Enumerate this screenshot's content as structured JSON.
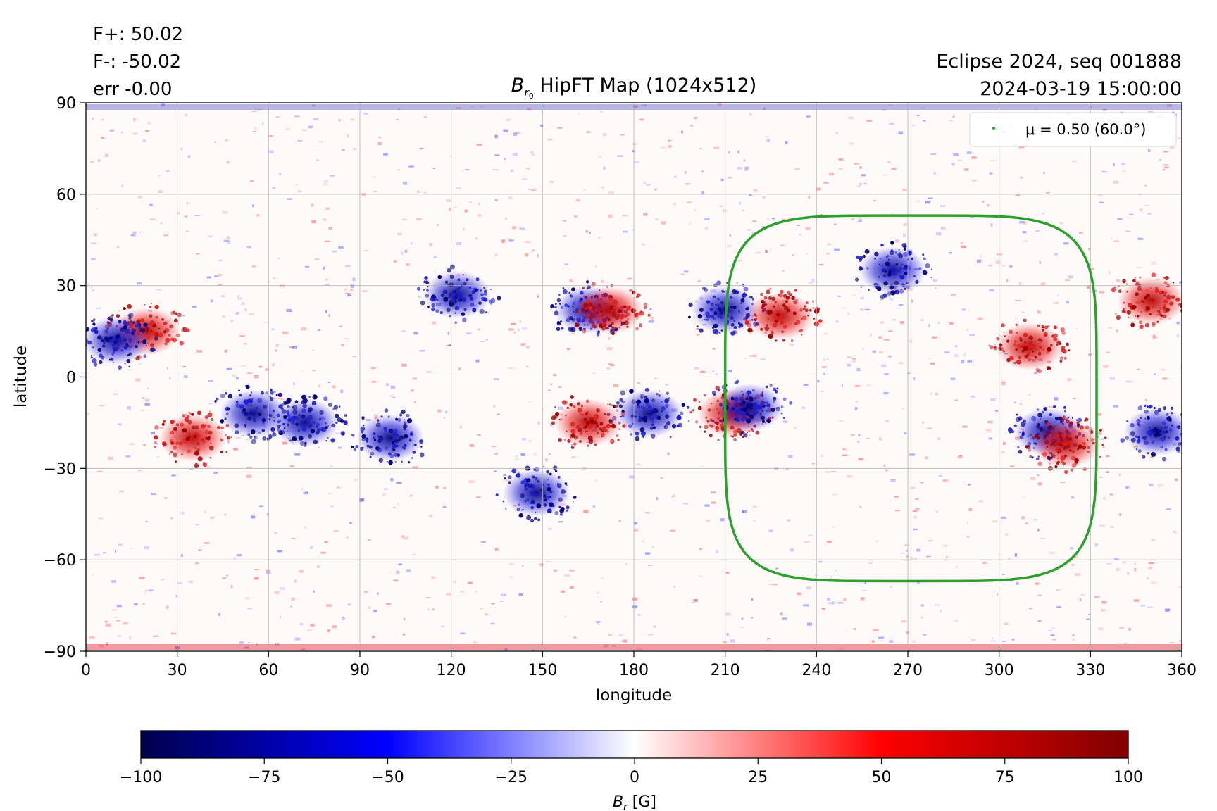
{
  "header": {
    "flux_pos": "F+: 50.02",
    "flux_neg": "F-: -50.02",
    "err": "err -0.00",
    "title_main": "B",
    "title_sub": "r",
    "title_sub2": "0",
    "title_rest": " HipFT Map (1024x512)",
    "event": "Eclipse 2024, seq 001888",
    "datetime": "2024-03-19 15:00:00"
  },
  "chart_data": {
    "type": "heatmap",
    "title": "Br0 HipFT Map (1024x512)",
    "xlabel": "longitude",
    "ylabel": "latitude",
    "xlim": [
      0,
      360
    ],
    "ylim": [
      -90,
      90
    ],
    "x_ticks": [
      "0",
      "30",
      "60",
      "90",
      "120",
      "150",
      "180",
      "210",
      "240",
      "270",
      "300",
      "330",
      "360"
    ],
    "y_ticks": [
      "90",
      "60",
      "30",
      "0",
      "−30",
      "−60",
      "−90"
    ],
    "grid": true,
    "legend": {
      "placement": "top-right",
      "label": "μ = 0.50 (60.0°)",
      "color": "#2ca02c"
    },
    "mu_contour": {
      "mu": 0.5,
      "angle_deg": 60.0,
      "center_lon": 271,
      "center_lat": -7,
      "lon_range": [
        211,
        333
      ],
      "lat_range": [
        -67,
        53
      ]
    },
    "colorbar": {
      "label_main": "B",
      "label_sub": "r",
      "label_unit": " [G]",
      "range": [
        -100,
        100
      ],
      "ticks": [
        "−100",
        "−75",
        "−50",
        "−25",
        "0",
        "25",
        "50",
        "75",
        "100"
      ],
      "colormap": [
        "#00004c",
        "#0000ff",
        "#ffffff",
        "#ff0000",
        "#800000"
      ]
    },
    "regions": [
      {
        "lon": 20,
        "lat": 15,
        "polarity": "positive"
      },
      {
        "lon": 10,
        "lat": 12,
        "polarity": "negative"
      },
      {
        "lon": 35,
        "lat": -20,
        "polarity": "positive"
      },
      {
        "lon": 55,
        "lat": -12,
        "polarity": "negative"
      },
      {
        "lon": 72,
        "lat": -15,
        "polarity": "negative"
      },
      {
        "lon": 100,
        "lat": -20,
        "polarity": "negative"
      },
      {
        "lon": 122,
        "lat": 27,
        "polarity": "negative"
      },
      {
        "lon": 165,
        "lat": 22,
        "polarity": "negative"
      },
      {
        "lon": 172,
        "lat": 22,
        "polarity": "positive"
      },
      {
        "lon": 185,
        "lat": -12,
        "polarity": "negative"
      },
      {
        "lon": 148,
        "lat": -38,
        "polarity": "negative"
      },
      {
        "lon": 165,
        "lat": -15,
        "polarity": "positive"
      },
      {
        "lon": 210,
        "lat": 22,
        "polarity": "negative"
      },
      {
        "lon": 228,
        "lat": 20,
        "polarity": "positive"
      },
      {
        "lon": 212,
        "lat": -12,
        "polarity": "positive"
      },
      {
        "lon": 218,
        "lat": -10,
        "polarity": "negative"
      },
      {
        "lon": 265,
        "lat": 35,
        "polarity": "negative"
      },
      {
        "lon": 310,
        "lat": 10,
        "polarity": "positive"
      },
      {
        "lon": 316,
        "lat": -18,
        "polarity": "negative"
      },
      {
        "lon": 322,
        "lat": -22,
        "polarity": "positive"
      },
      {
        "lon": 350,
        "lat": 25,
        "polarity": "positive"
      },
      {
        "lon": 352,
        "lat": -18,
        "polarity": "negative"
      }
    ]
  }
}
